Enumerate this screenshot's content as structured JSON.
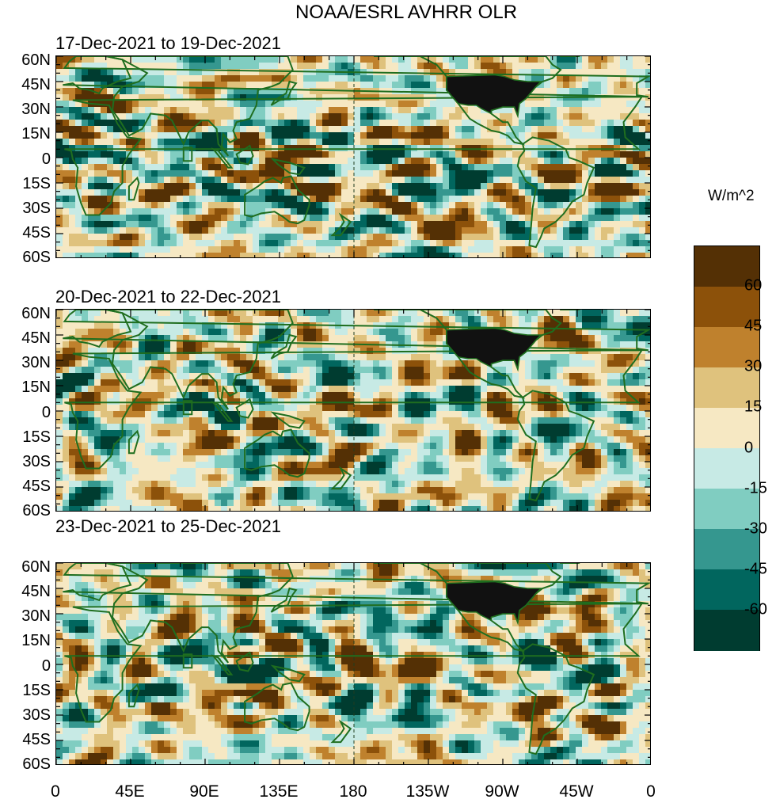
{
  "figure": {
    "title": "NOAA/ESRL AVHRR OLR",
    "units_label": "W/m^2"
  },
  "panels": [
    {
      "label": "17-Dec-2021 to 19-Dec-2021"
    },
    {
      "label": "20-Dec-2021 to 22-Dec-2021"
    },
    {
      "label": "23-Dec-2021 to 25-Dec-2021"
    }
  ],
  "lat_labels": [
    "60N",
    "45N",
    "30N",
    "15N",
    "0",
    "15S",
    "30S",
    "45S",
    "60S"
  ],
  "lon_labels": [
    "0",
    "45E",
    "90E",
    "135E",
    "180",
    "135W",
    "90W",
    "45W",
    "0"
  ],
  "colorbar": {
    "levels": [
      "60",
      "45",
      "30",
      "15",
      "0",
      "-15",
      "-30",
      "-45",
      "-60"
    ],
    "colors": [
      "#543005",
      "#8c510a",
      "#bf812d",
      "#dfc27d",
      "#f6e8c3",
      "#c7eae5",
      "#80cdc1",
      "#35978f",
      "#01665e",
      "#003c30"
    ]
  },
  "colors": {
    "coast": "#1f6e1f",
    "land_black": "#111111"
  }
}
